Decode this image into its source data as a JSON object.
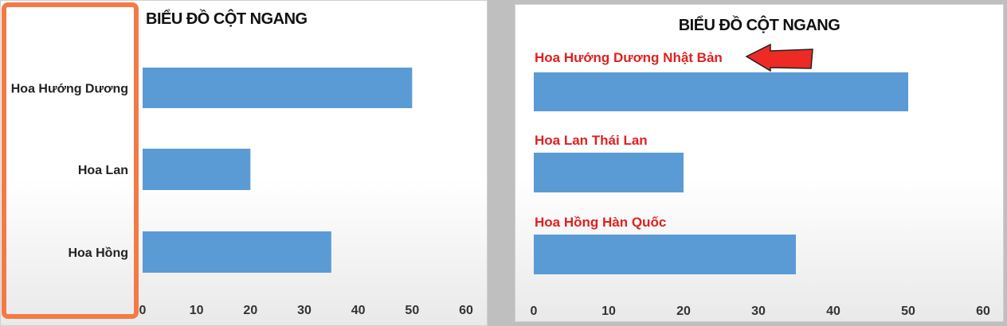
{
  "chart_data": [
    {
      "type": "bar",
      "orientation": "horizontal",
      "title": "BIỂU ĐỒ CỘT NGANG",
      "categories": [
        "Hoa Hướng  Dương",
        "Hoa Lan",
        "Hoa Hồng"
      ],
      "values": [
        50,
        20,
        35
      ],
      "xlim": [
        0,
        60
      ],
      "xticks": [
        "0",
        "10",
        "20",
        "30",
        "40",
        "50",
        "60"
      ],
      "category_label_position": "left",
      "grid": false,
      "bar_color": "#5b9bd5"
    },
    {
      "type": "bar",
      "orientation": "horizontal",
      "title": "BIỂU ĐỒ CỘT NGANG",
      "categories": [
        "Hoa Hướng Dương Nhật Bản",
        "Hoa Lan Thái Lan",
        "Hoa Hồng Hàn Quốc"
      ],
      "values": [
        50,
        20,
        35
      ],
      "xlim": [
        0,
        60
      ],
      "xticks": [
        "0",
        "10",
        "20",
        "30",
        "40",
        "50",
        "60"
      ],
      "category_label_position": "above-bar",
      "category_label_color": "#e02020",
      "grid": false,
      "bar_color": "#5b9bd5",
      "arrow_color": "#ee2a24"
    }
  ],
  "highlight_color": "#f47a45"
}
